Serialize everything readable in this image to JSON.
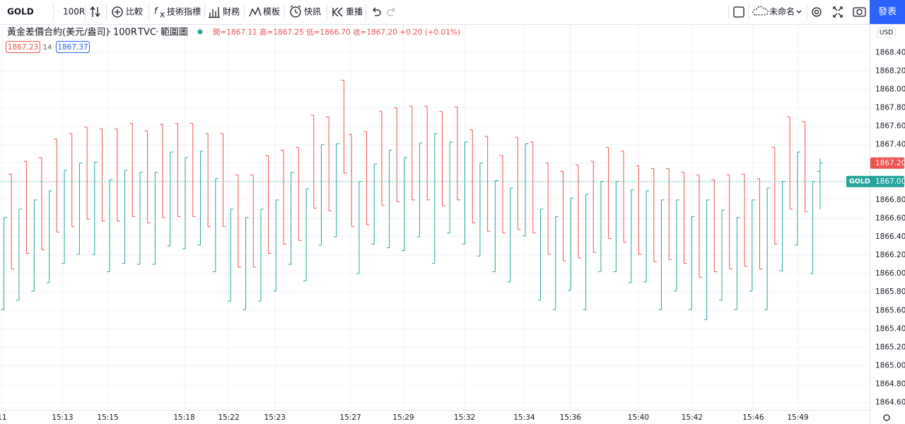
{
  "toolbar": {
    "symbol": "GOLD",
    "interval": "100R",
    "items": [
      "比較",
      "技術指標",
      "財務",
      "模板",
      "快訊",
      "重播"
    ],
    "layout_name": "未命名",
    "publish": "發表"
  },
  "legend": {
    "title": "黃金差價合約(美元/盎司)",
    "interval": "100R",
    "source": "TVC",
    "chart_style": "範圍圖",
    "ohlc": "開=1867.11 高=1867.25 低=1866.70 收=1867.20 +0.20 (+0.01%)",
    "bid": "1867.23",
    "spread": "14",
    "ask": "1867.37"
  },
  "chart_data": {
    "type": "ohlc",
    "currency": "USD",
    "up_color": "#26a69a",
    "down_color": "#ef5350",
    "grid": true,
    "xlim": [
      -0.47,
      114.6
    ],
    "ylim": [
      1864.52,
      1868.71
    ],
    "xticks": [
      {
        "value": -0.2,
        "label": "11"
      },
      {
        "value": 7.8,
        "label": "15:13"
      },
      {
        "value": 13.8,
        "label": "15:15"
      },
      {
        "value": 23.9,
        "label": "15:18"
      },
      {
        "value": 29.8,
        "label": "15:22"
      },
      {
        "value": 35.9,
        "label": "15:23"
      },
      {
        "value": 45.9,
        "label": "15:27"
      },
      {
        "value": 52.9,
        "label": "15:29"
      },
      {
        "value": 61,
        "label": "15:32"
      },
      {
        "value": 68.9,
        "label": "15:34"
      },
      {
        "value": 75,
        "label": "15:36"
      },
      {
        "value": 84,
        "label": "15:40"
      },
      {
        "value": 91.1,
        "label": "15:42"
      },
      {
        "value": 99.2,
        "label": "15:46"
      },
      {
        "value": 105.1,
        "label": "15:49"
      }
    ],
    "yticks": [
      {
        "value": 1864.6,
        "label": "1864.60"
      },
      {
        "value": 1864.8,
        "label": "1864.80"
      },
      {
        "value": 1865,
        "label": "1865.00"
      },
      {
        "value": 1865.2,
        "label": "1865.20"
      },
      {
        "value": 1865.4,
        "label": "1865.40"
      },
      {
        "value": 1865.6,
        "label": "1865.60"
      },
      {
        "value": 1865.8,
        "label": "1865.80"
      },
      {
        "value": 1866,
        "label": "1866.00"
      },
      {
        "value": 1866.2,
        "label": "1866.20"
      },
      {
        "value": 1866.4,
        "label": "1866.40"
      },
      {
        "value": 1866.6,
        "label": "1866.60"
      },
      {
        "value": 1866.8,
        "label": "1866.80"
      },
      {
        "value": 1867,
        "label": "1867.00"
      },
      {
        "value": 1867.2,
        "label": "1867.20"
      },
      {
        "value": 1867.4,
        "label": "1867.40"
      },
      {
        "value": 1867.6,
        "label": "1867.60"
      },
      {
        "value": 1867.8,
        "label": "1867.80"
      },
      {
        "value": 1868,
        "label": "1868.00"
      },
      {
        "value": 1868.2,
        "label": "1868.20"
      },
      {
        "value": 1868.4,
        "label": "1868.40"
      }
    ],
    "price_line": {
      "name": "GOLD",
      "value": 1867,
      "label": "1867.00",
      "color": "#26a69a"
    },
    "last_price": {
      "value": 1867.2,
      "label": "1867.20",
      "color": "#ef5350"
    },
    "values": [
      [
        1865.61,
        1866.61,
        1865.61,
        1866.61
      ],
      [
        1867.08,
        1867.08,
        1866.05,
        1866.05
      ],
      [
        1865.71,
        1866.7,
        1865.71,
        1866.7
      ],
      [
        1867.22,
        1867.22,
        1866.22,
        1866.22
      ],
      [
        1865.81,
        1866.8,
        1865.81,
        1866.8
      ],
      [
        1867.26,
        1867.26,
        1866.26,
        1866.26
      ],
      [
        1865.9,
        1866.9,
        1865.9,
        1866.9
      ],
      [
        1867.46,
        1867.46,
        1866.45,
        1866.45
      ],
      [
        1866.11,
        1867.12,
        1866.11,
        1867.12
      ],
      [
        1867.52,
        1867.52,
        1866.51,
        1866.51
      ],
      [
        1866.21,
        1867.2,
        1866.21,
        1867.2
      ],
      [
        1867.59,
        1867.59,
        1866.59,
        1866.59
      ],
      [
        1866.21,
        1867.21,
        1866.21,
        1867.21
      ],
      [
        1867.57,
        1867.57,
        1866.57,
        1866.57
      ],
      [
        1866.02,
        1867.02,
        1866.02,
        1867.02
      ],
      [
        1867.57,
        1867.57,
        1866.57,
        1866.57
      ],
      [
        1866.11,
        1867.12,
        1866.11,
        1867.12
      ],
      [
        1867.63,
        1867.63,
        1866.62,
        1866.62
      ],
      [
        1866.1,
        1867.1,
        1866.1,
        1867.1
      ],
      [
        1867.55,
        1867.55,
        1866.55,
        1866.55
      ],
      [
        1866.1,
        1867.1,
        1866.1,
        1867.1
      ],
      [
        1867.62,
        1867.62,
        1866.61,
        1866.61
      ],
      [
        1866.3,
        1867.32,
        1866.3,
        1867.32
      ],
      [
        1867.63,
        1867.63,
        1866.62,
        1866.62
      ],
      [
        1866.27,
        1867.26,
        1866.27,
        1867.26
      ],
      [
        1867.63,
        1867.63,
        1866.62,
        1866.62
      ],
      [
        1866.31,
        1867.33,
        1866.31,
        1867.33
      ],
      [
        1867.52,
        1867.52,
        1866.51,
        1866.51
      ],
      [
        1866.02,
        1867.03,
        1866.02,
        1867.03
      ],
      [
        1867.52,
        1867.52,
        1866.51,
        1866.51
      ],
      [
        1865.7,
        1866.7,
        1865.7,
        1866.7
      ],
      [
        1867.07,
        1867.07,
        1866.07,
        1866.07
      ],
      [
        1865.61,
        1866.61,
        1865.61,
        1866.61
      ],
      [
        1867.07,
        1867.07,
        1866.07,
        1866.07
      ],
      [
        1865.7,
        1866.7,
        1865.7,
        1866.7
      ],
      [
        1867.28,
        1867.28,
        1866.22,
        1866.22
      ],
      [
        1865.81,
        1866.8,
        1865.81,
        1866.8
      ],
      [
        1867.34,
        1867.34,
        1866.32,
        1866.32
      ],
      [
        1866.1,
        1867.1,
        1866.1,
        1867.1
      ],
      [
        1867.37,
        1867.37,
        1866.36,
        1866.36
      ],
      [
        1865.92,
        1866.92,
        1865.92,
        1866.92
      ],
      [
        1867.72,
        1867.72,
        1866.71,
        1866.71
      ],
      [
        1866.31,
        1867.4,
        1866.31,
        1867.4
      ],
      [
        1867.7,
        1867.7,
        1866.68,
        1866.68
      ],
      [
        1866.4,
        1867.41,
        1866.4,
        1867.41
      ],
      [
        1868.1,
        1868.1,
        1867.09,
        1867.09
      ],
      [
        1867.51,
        1867.51,
        1866.51,
        1866.51
      ],
      [
        1866.0,
        1867.0,
        1866.0,
        1867.0
      ],
      [
        1867.54,
        1867.54,
        1866.53,
        1866.53
      ],
      [
        1866.32,
        1867.19,
        1866.32,
        1867.19
      ],
      [
        1867.76,
        1867.76,
        1866.74,
        1866.74
      ],
      [
        1866.28,
        1867.34,
        1866.28,
        1867.34
      ],
      [
        1867.8,
        1867.8,
        1866.78,
        1866.78
      ],
      [
        1866.25,
        1867.26,
        1866.25,
        1867.26
      ],
      [
        1867.82,
        1867.82,
        1866.8,
        1866.8
      ],
      [
        1866.4,
        1867.42,
        1866.4,
        1867.42
      ],
      [
        1867.82,
        1867.82,
        1866.8,
        1866.8
      ],
      [
        1866.11,
        1867.52,
        1866.11,
        1867.52
      ],
      [
        1867.76,
        1867.76,
        1866.74,
        1866.74
      ],
      [
        1866.44,
        1867.43,
        1866.44,
        1867.43
      ],
      [
        1867.81,
        1867.81,
        1866.8,
        1866.8
      ],
      [
        1866.32,
        1867.43,
        1866.32,
        1867.43
      ],
      [
        1867.56,
        1867.56,
        1866.55,
        1866.55
      ],
      [
        1866.19,
        1867.2,
        1866.19,
        1867.2
      ],
      [
        1867.49,
        1867.49,
        1866.46,
        1866.46
      ],
      [
        1866.02,
        1867.01,
        1866.02,
        1867.01
      ],
      [
        1867.28,
        1867.28,
        1866.44,
        1866.44
      ],
      [
        1865.91,
        1866.93,
        1865.91,
        1866.93
      ],
      [
        1867.48,
        1867.48,
        1866.48,
        1866.48
      ],
      [
        1866.41,
        1867.41,
        1866.41,
        1867.41
      ],
      [
        1867.43,
        1867.43,
        1866.44,
        1866.44
      ],
      [
        1865.71,
        1866.7,
        1865.71,
        1866.7
      ],
      [
        1867.2,
        1867.2,
        1866.21,
        1866.21
      ],
      [
        1865.61,
        1866.62,
        1865.61,
        1866.62
      ],
      [
        1867.11,
        1867.11,
        1866.14,
        1866.14
      ],
      [
        1865.82,
        1866.82,
        1865.82,
        1866.82
      ],
      [
        1867.18,
        1867.18,
        1866.17,
        1866.17
      ],
      [
        1865.61,
        1866.86,
        1865.61,
        1866.86
      ],
      [
        1867.22,
        1867.22,
        1866.23,
        1866.23
      ],
      [
        1866.02,
        1867.0,
        1866.02,
        1867.0
      ],
      [
        1867.37,
        1867.37,
        1866.38,
        1866.38
      ],
      [
        1866.02,
        1867.0,
        1866.02,
        1867.0
      ],
      [
        1867.33,
        1867.33,
        1866.34,
        1866.34
      ],
      [
        1865.9,
        1866.91,
        1865.9,
        1866.91
      ],
      [
        1867.17,
        1867.17,
        1866.21,
        1866.21
      ],
      [
        1865.91,
        1866.9,
        1865.91,
        1866.9
      ],
      [
        1867.14,
        1867.14,
        1866.13,
        1866.13
      ],
      [
        1865.61,
        1866.8,
        1865.61,
        1866.8
      ],
      [
        1867.14,
        1867.14,
        1866.15,
        1866.15
      ],
      [
        1865.81,
        1866.8,
        1865.81,
        1866.8
      ],
      [
        1867.1,
        1867.1,
        1866.11,
        1866.11
      ],
      [
        1865.61,
        1866.62,
        1865.61,
        1866.62
      ],
      [
        1867.07,
        1867.07,
        1865.96,
        1865.96
      ],
      [
        1865.5,
        1866.8,
        1865.5,
        1866.8
      ],
      [
        1867.02,
        1867.02,
        1866.02,
        1866.02
      ],
      [
        1865.71,
        1866.69,
        1865.71,
        1866.69
      ],
      [
        1867.07,
        1867.07,
        1866.05,
        1866.05
      ],
      [
        1865.61,
        1866.61,
        1865.61,
        1866.61
      ],
      [
        1867.08,
        1867.08,
        1866.08,
        1866.08
      ],
      [
        1865.81,
        1866.8,
        1865.81,
        1866.8
      ],
      [
        1867.03,
        1867.03,
        1866.05,
        1866.05
      ],
      [
        1865.61,
        1866.93,
        1865.61,
        1866.93
      ],
      [
        1867.37,
        1867.37,
        1866.32,
        1866.32
      ],
      [
        1866.03,
        1867.0,
        1866.03,
        1867.0
      ],
      [
        1867.7,
        1867.7,
        1866.7,
        1866.7
      ],
      [
        1866.31,
        1867.32,
        1866.31,
        1867.32
      ],
      [
        1867.65,
        1867.65,
        1866.67,
        1866.67
      ],
      [
        1866.0,
        1867.0,
        1866.0,
        1867.0
      ],
      [
        1867.11,
        1867.25,
        1866.7,
        1867.2
      ]
    ]
  }
}
